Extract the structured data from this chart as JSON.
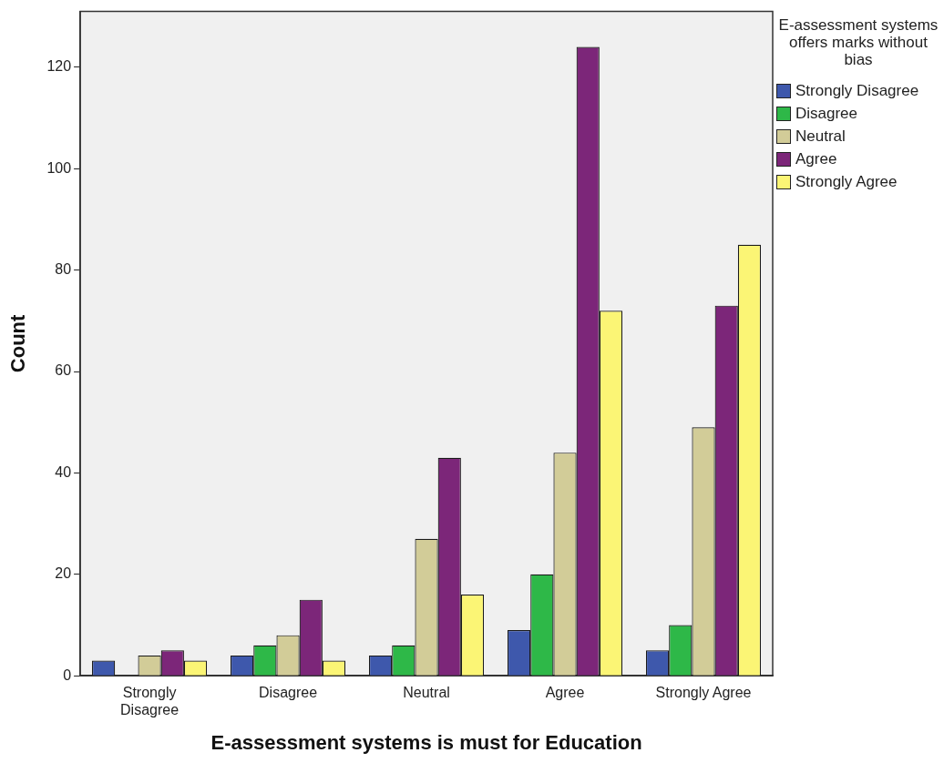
{
  "chart_data": {
    "type": "bar",
    "xlabel": "E-assessment systems is must for Education",
    "ylabel": "Count",
    "legend_title": "E-assessment systems offers marks without bias",
    "categories": [
      "Strongly Disagree",
      "Disagree",
      "Neutral",
      "Agree",
      "Strongly Agree"
    ],
    "series": [
      {
        "name": "Strongly Disagree",
        "color": "#3e58ac",
        "values": [
          3,
          4,
          4,
          9,
          5
        ]
      },
      {
        "name": "Disagree",
        "color": "#2eb848",
        "values": [
          null,
          6,
          6,
          20,
          10
        ]
      },
      {
        "name": "Neutral",
        "color": "#d2cc98",
        "values": [
          4,
          8,
          27,
          44,
          49
        ]
      },
      {
        "name": "Agree",
        "color": "#7c2679",
        "values": [
          5,
          15,
          43,
          124,
          73
        ]
      },
      {
        "name": "Strongly Agree",
        "color": "#fbf575",
        "values": [
          3,
          3,
          16,
          72,
          85
        ]
      }
    ],
    "ylim": [
      0,
      131
    ],
    "yticks": [
      0,
      20,
      40,
      60,
      80,
      100,
      120
    ],
    "grid": false,
    "legend": "right"
  }
}
